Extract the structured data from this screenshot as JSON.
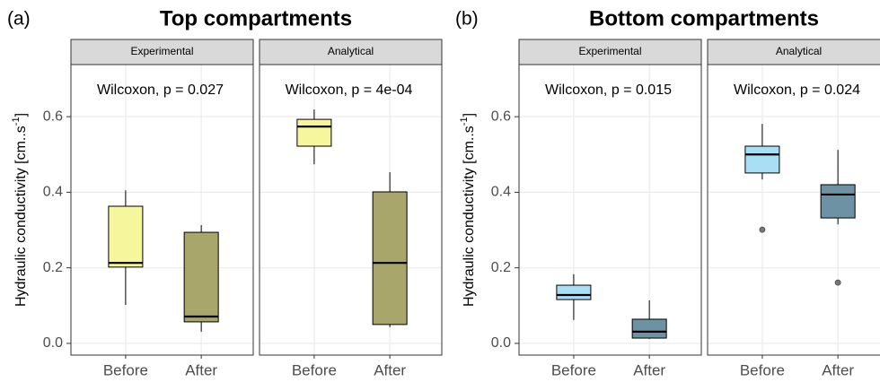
{
  "chart_data": [
    {
      "type": "box",
      "panel_label": "(a)",
      "title": "Top compartments",
      "y_label": [
        "Hydraulic conductivity [cm..s",
        "-1",
        "]"
      ],
      "ylim": [
        -0.031,
        0.738
      ],
      "yticks": [
        {
          "value": 0,
          "label": "0.0"
        },
        0.2,
        0.4,
        0.6
      ],
      "grid": true,
      "facets": [
        {
          "name": "Experimental",
          "annotation": "Wilcoxon, p = 0.027",
          "categories": [
            "Before",
            "After"
          ],
          "boxes": [
            {
              "min": 0.102,
              "q1": 0.202,
              "median": 0.213,
              "q3": 0.363,
              "max": 0.405,
              "outliers": [],
              "color": "#f6f69c"
            },
            {
              "min": 0.031,
              "q1": 0.057,
              "median": 0.071,
              "q3": 0.294,
              "max": 0.313,
              "outliers": [],
              "color": "#a9a66c"
            }
          ]
        },
        {
          "name": "Analytical",
          "annotation": "Wilcoxon, p = 4e-04",
          "categories": [
            "Before",
            "After"
          ],
          "boxes": [
            {
              "min": 0.474,
              "q1": 0.522,
              "median": 0.574,
              "q3": 0.593,
              "max": 0.619,
              "outliers": [],
              "color": "#f6f69c"
            },
            {
              "min": 0.043,
              "q1": 0.05,
              "median": 0.213,
              "q3": 0.401,
              "max": 0.453,
              "outliers": [],
              "color": "#a9a66c"
            }
          ]
        }
      ]
    },
    {
      "type": "box",
      "panel_label": "(b)",
      "title": "Bottom compartments",
      "y_label": [
        "Hydraulic conductivity [cm..s",
        "-1",
        "]"
      ],
      "ylim": [
        -0.031,
        0.738
      ],
      "yticks": [
        {
          "value": 0,
          "label": "0.0"
        },
        0.2,
        0.4,
        0.6
      ],
      "grid": true,
      "facets": [
        {
          "name": "Experimental",
          "annotation": "Wilcoxon, p = 0.015",
          "categories": [
            "Before",
            "After"
          ],
          "boxes": [
            {
              "min": 0.062,
              "q1": 0.116,
              "median": 0.128,
              "q3": 0.154,
              "max": 0.183,
              "outliers": [],
              "color": "#a9dff5"
            },
            {
              "min": 0.012,
              "q1": 0.014,
              "median": 0.031,
              "q3": 0.064,
              "max": 0.114,
              "outliers": [],
              "color": "#6c92a4"
            }
          ]
        },
        {
          "name": "Analytical",
          "annotation": "Wilcoxon, p = 0.024",
          "categories": [
            "Before",
            "After"
          ],
          "boxes": [
            {
              "min": 0.434,
              "q1": 0.451,
              "median": 0.5,
              "q3": 0.522,
              "max": 0.581,
              "outliers": [
                0.301
              ],
              "color": "#a9dff5"
            },
            {
              "min": 0.315,
              "q1": 0.332,
              "median": 0.394,
              "q3": 0.42,
              "max": 0.512,
              "outliers": [
                0.161
              ],
              "color": "#6c92a4"
            }
          ]
        }
      ]
    }
  ]
}
